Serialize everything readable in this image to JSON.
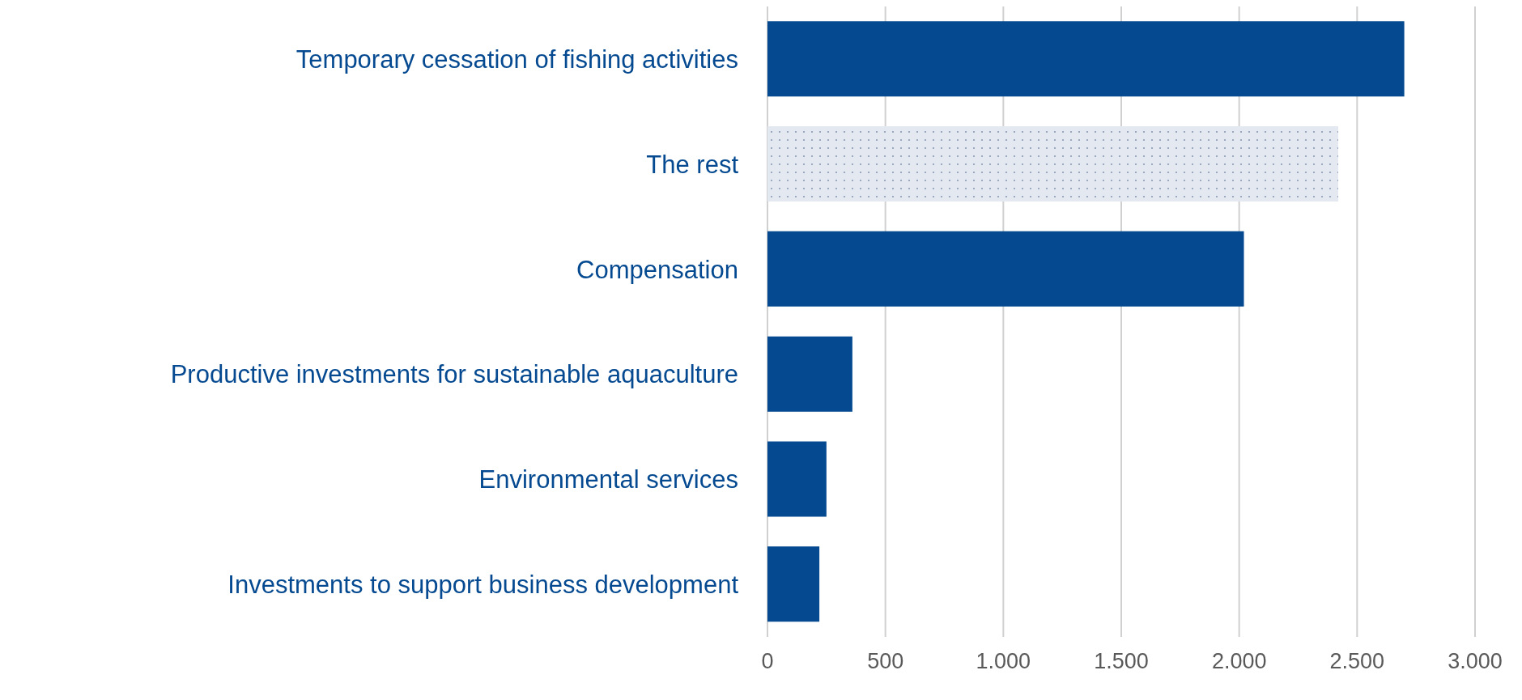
{
  "chart_data": {
    "type": "bar",
    "orientation": "horizontal",
    "categories": [
      "Temporary cessation of fishing activities",
      "The rest",
      "Compensation",
      "Productive investments for sustainable aquaculture",
      "Environmental services",
      "Investments to support business development"
    ],
    "values": [
      2700,
      2420,
      2020,
      360,
      250,
      220
    ],
    "colors": [
      "#054a91",
      "#e4e9f1",
      "#054a91",
      "#054a91",
      "#054a91",
      "#054a91"
    ],
    "xlim": [
      0,
      3000
    ],
    "xticks": [
      0,
      {
        "value": 500,
        "label": "500"
      },
      {
        "value": 1000,
        "label": "1.000"
      },
      {
        "value": 1500,
        "label": "1.500"
      },
      {
        "value": 2000,
        "label": "2.000"
      },
      {
        "value": 2500,
        "label": "2.500"
      },
      {
        "value": 3000,
        "label": "3.000"
      }
    ],
    "grid": "x"
  }
}
